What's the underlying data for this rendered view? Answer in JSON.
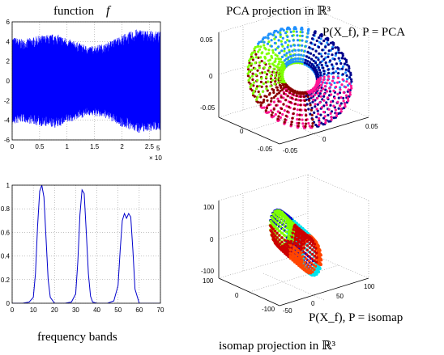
{
  "chart_data": [
    {
      "type": "line",
      "panel": "function-plot",
      "title_text": "function",
      "title_symbol": "f",
      "xlim": [
        0,
        270000
      ],
      "ylim": [
        -6,
        6
      ],
      "x_ticks": [
        "0",
        "0.5",
        "1",
        "1.5",
        "2",
        "2.5"
      ],
      "x_tick_values": [
        0,
        50000,
        100000,
        150000,
        200000,
        250000
      ],
      "x_exponent_label": "× 10",
      "x_exponent_power": "5",
      "y_ticks": [
        "-6",
        "-4",
        "-2",
        "0",
        "2",
        "4",
        "6"
      ],
      "y_tick_values": [
        -6,
        -4,
        -2,
        0,
        2,
        4,
        6
      ],
      "series": [
        {
          "color": "#0000ff",
          "envelope_x": [
            0,
            20000,
            50000,
            80000,
            110000,
            140000,
            170000,
            200000,
            230000,
            250000,
            270000
          ],
          "upper": [
            4.5,
            4.2,
            4.6,
            4.8,
            4.1,
            3.5,
            3.8,
            4.7,
            5.3,
            5.1,
            5.0
          ],
          "lower": [
            -4.5,
            -4.2,
            -4.6,
            -4.8,
            -4.1,
            -3.5,
            -3.8,
            -4.7,
            -5.3,
            -5.1,
            -5.0
          ]
        }
      ],
      "grid": true
    },
    {
      "type": "scatter",
      "panel": "pca-projection",
      "title": "PCA projection in ℝ³",
      "annotation": "P(X_f), P = PCA",
      "z_ticks": [
        "0.05",
        "0",
        "-0.05"
      ],
      "x_ticks": [
        "-0.05",
        "0",
        "0.05"
      ],
      "y_ticks": [
        "0",
        "-0.05"
      ],
      "colors": [
        "#00008b",
        "#1e90ff",
        "#7fff00",
        "#8b0000",
        "#ff1493"
      ]
    },
    {
      "type": "line",
      "panel": "frequency-bands",
      "title": "frequency bands",
      "xlim": [
        0,
        70
      ],
      "ylim": [
        0,
        1
      ],
      "x_ticks": [
        "0",
        "10",
        "20",
        "30",
        "40",
        "50",
        "60",
        "70"
      ],
      "y_ticks": [
        "0",
        "0.2",
        "0.4",
        "0.6",
        "0.8",
        "1"
      ],
      "series": [
        {
          "color": "#0000cc",
          "x": [
            0,
            5,
            8,
            10,
            11,
            12,
            13,
            14,
            15,
            16,
            17,
            18,
            20,
            25,
            28,
            30,
            31,
            32,
            33,
            34,
            35,
            36,
            37,
            38,
            40,
            45,
            48,
            50,
            51,
            52,
            53,
            54,
            55,
            56,
            57,
            58,
            60,
            65,
            70
          ],
          "y": [
            0,
            0,
            0.01,
            0.05,
            0.25,
            0.65,
            0.95,
            1.0,
            0.9,
            0.55,
            0.2,
            0.05,
            0,
            0,
            0.01,
            0.08,
            0.35,
            0.75,
            0.96,
            0.93,
            0.6,
            0.25,
            0.06,
            0.01,
            0,
            0,
            0.02,
            0.15,
            0.45,
            0.7,
            0.76,
            0.72,
            0.76,
            0.73,
            0.45,
            0.12,
            0,
            0,
            0
          ]
        }
      ],
      "grid": true
    },
    {
      "type": "scatter",
      "panel": "isomap-projection",
      "title": "isomap projection in ℝ³",
      "annotation": "P(X_f), P = isomap",
      "z_ticks": [
        "100",
        "0",
        "-100"
      ],
      "x_ticks": [
        "-100",
        "-50",
        "0",
        "50",
        "100"
      ],
      "y_ticks": [
        "100",
        "0",
        "-100"
      ],
      "colors": [
        "#00e5ee",
        "#0000cd",
        "#7fff00",
        "#cc0000",
        "#ff4500"
      ]
    }
  ]
}
